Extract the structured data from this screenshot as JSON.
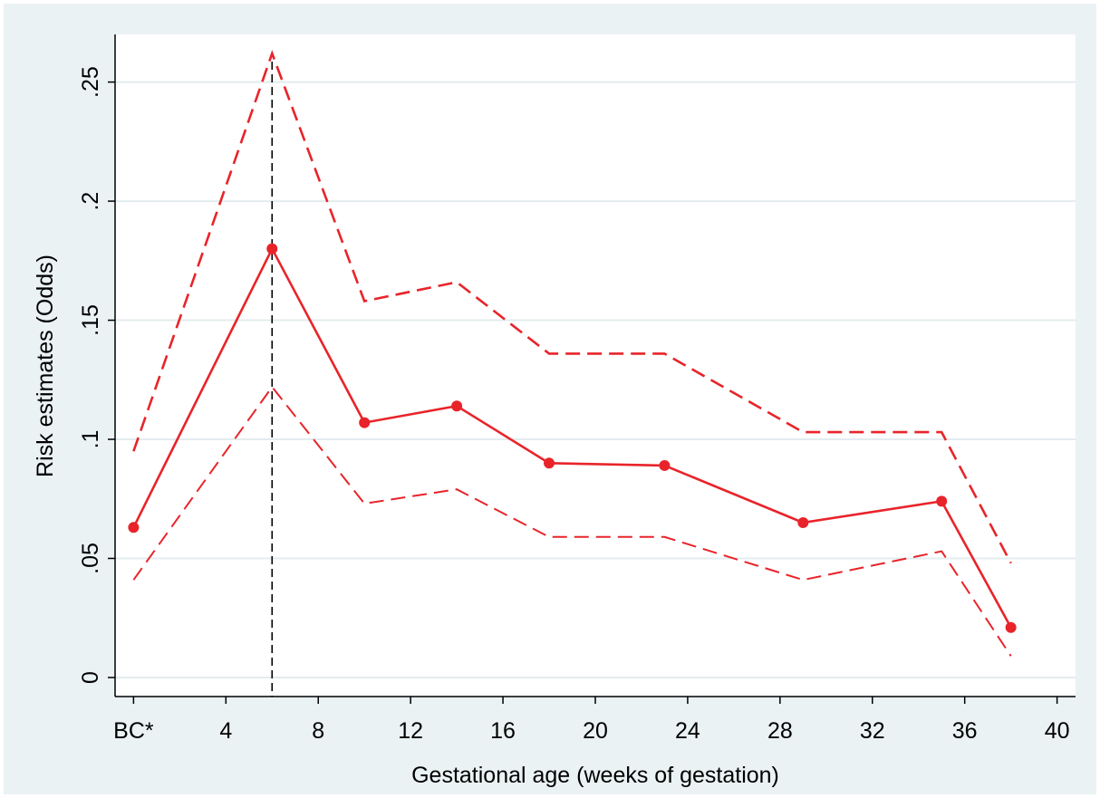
{
  "chart_data": {
    "type": "line",
    "title": "",
    "xlabel": "Gestational age (weeks of gestation)",
    "ylabel": "Risk estimates (Odds)",
    "xlim": [
      -0.8,
      40.8
    ],
    "ylim": [
      -0.008,
      0.27
    ],
    "grid": true,
    "legend": "none",
    "x_ticks": [
      {
        "value": 0,
        "label": "BC*"
      },
      {
        "value": 4,
        "label": "4"
      },
      {
        "value": 8,
        "label": "8"
      },
      {
        "value": 12,
        "label": "12"
      },
      {
        "value": 16,
        "label": "16"
      },
      {
        "value": 20,
        "label": "20"
      },
      {
        "value": 24,
        "label": "24"
      },
      {
        "value": 28,
        "label": "28"
      },
      {
        "value": 32,
        "label": "32"
      },
      {
        "value": 36,
        "label": "36"
      },
      {
        "value": 40,
        "label": "40"
      }
    ],
    "y_ticks": [
      {
        "value": 0,
        "label": "0"
      },
      {
        "value": 0.05,
        "label": ".05"
      },
      {
        "value": 0.1,
        "label": ".1"
      },
      {
        "value": 0.15,
        "label": ".15"
      },
      {
        "value": 0.2,
        "label": ".2"
      },
      {
        "value": 0.25,
        "label": ".25"
      }
    ],
    "reference_line_x": 6,
    "series": [
      {
        "role": "estimate",
        "style": "solid-with-markers",
        "color": "#e8242a",
        "x": [
          0,
          6,
          10,
          14,
          18,
          23,
          29,
          35,
          38
        ],
        "y": [
          0.063,
          0.18,
          0.107,
          0.114,
          0.09,
          0.089,
          0.065,
          0.074,
          0.021
        ]
      },
      {
        "role": "upper-ci",
        "style": "dashed",
        "color": "#e8242a",
        "x": [
          0,
          6,
          10,
          14,
          18,
          23,
          29,
          35,
          38
        ],
        "y": [
          0.095,
          0.262,
          0.158,
          0.166,
          0.136,
          0.136,
          0.103,
          0.103,
          0.048
        ]
      },
      {
        "role": "lower-ci",
        "style": "dashed",
        "color": "#e8242a",
        "x": [
          0,
          6,
          10,
          14,
          18,
          23,
          29,
          35,
          38
        ],
        "y": [
          0.041,
          0.122,
          0.073,
          0.079,
          0.059,
          0.059,
          0.041,
          0.053,
          0.009
        ]
      }
    ]
  }
}
